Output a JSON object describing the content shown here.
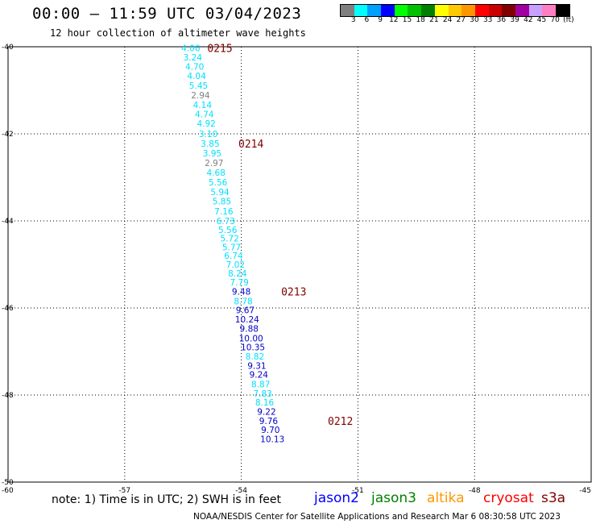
{
  "header": {
    "title": "00:00 – 11:59 UTC 03/04/2023",
    "subtitle": "12 hour collection of altimeter wave heights"
  },
  "color_legend": {
    "colors": [
      "#7f7f7f",
      "#00ffff",
      "#00a0ff",
      "#0000ff",
      "#00ff00",
      "#00c000",
      "#008000",
      "#ffff00",
      "#ffc800",
      "#ff9600",
      "#ff0000",
      "#c80000",
      "#800000",
      "#a000a0",
      "#c8a0ff",
      "#ff80c0",
      "#000000"
    ],
    "labels": [
      "3",
      "6",
      "9",
      "12",
      "15",
      "18",
      "21",
      "24",
      "27",
      "30",
      "33",
      "36",
      "39",
      "42",
      "45",
      "70",
      "(ft)"
    ]
  },
  "chart_data": {
    "type": "scatter",
    "x_ticks": [
      "-57",
      "-54",
      "-51",
      "-48",
      "-45"
    ],
    "y_ticks": [
      "-40",
      "-42",
      "-44",
      "-46",
      "-48",
      "-50"
    ],
    "corner_x_label": "-60",
    "xlim": [
      -60,
      -45
    ],
    "ylim": [
      -50,
      -40
    ],
    "grid": true,
    "points": [
      {
        "lon": -55.3,
        "lat": -40.03,
        "v": "4.06",
        "c": "#00e0ff"
      },
      {
        "lon": -55.25,
        "lat": -40.24,
        "v": "3.24",
        "c": "#00e0ff"
      },
      {
        "lon": -55.2,
        "lat": -40.45,
        "v": "4.70",
        "c": "#00e0ff"
      },
      {
        "lon": -55.15,
        "lat": -40.67,
        "v": "4.04",
        "c": "#00e0ff"
      },
      {
        "lon": -55.1,
        "lat": -40.89,
        "v": "5.45",
        "c": "#00e0ff"
      },
      {
        "lon": -55.05,
        "lat": -41.11,
        "v": "2.94",
        "c": "#7f7f7f"
      },
      {
        "lon": -55.0,
        "lat": -41.33,
        "v": "4.14",
        "c": "#00e0ff"
      },
      {
        "lon": -54.95,
        "lat": -41.55,
        "v": "4.74",
        "c": "#00e0ff"
      },
      {
        "lon": -54.9,
        "lat": -41.76,
        "v": "4.92",
        "c": "#00e0ff"
      },
      {
        "lon": -54.85,
        "lat": -42.0,
        "v": "3.10",
        "c": "#00e0ff"
      },
      {
        "lon": -54.8,
        "lat": -42.22,
        "v": "3.85",
        "c": "#00e0ff"
      },
      {
        "lon": -54.75,
        "lat": -42.44,
        "v": "3.95",
        "c": "#00e0ff"
      },
      {
        "lon": -54.7,
        "lat": -42.67,
        "v": "2.97",
        "c": "#7f7f7f"
      },
      {
        "lon": -54.65,
        "lat": -42.89,
        "v": "4.68",
        "c": "#00e0ff"
      },
      {
        "lon": -54.6,
        "lat": -43.11,
        "v": "5.56",
        "c": "#00e0ff"
      },
      {
        "lon": -54.55,
        "lat": -43.33,
        "v": "5.94",
        "c": "#00e0ff"
      },
      {
        "lon": -54.5,
        "lat": -43.55,
        "v": "5.85",
        "c": "#00e0ff"
      },
      {
        "lon": -54.45,
        "lat": -43.78,
        "v": "7.16",
        "c": "#00e0ff"
      },
      {
        "lon": -54.4,
        "lat": -44.0,
        "v": "6.73",
        "c": "#00e0ff"
      },
      {
        "lon": -54.35,
        "lat": -44.2,
        "v": "5.56",
        "c": "#00e0ff"
      },
      {
        "lon": -54.3,
        "lat": -44.4,
        "v": "5.72",
        "c": "#00e0ff"
      },
      {
        "lon": -54.25,
        "lat": -44.6,
        "v": "5.77",
        "c": "#00e0ff"
      },
      {
        "lon": -54.2,
        "lat": -44.8,
        "v": "6.74",
        "c": "#00e0ff"
      },
      {
        "lon": -54.15,
        "lat": -45.0,
        "v": "7.02",
        "c": "#00e0ff"
      },
      {
        "lon": -54.1,
        "lat": -45.2,
        "v": "8.24",
        "c": "#00e0ff"
      },
      {
        "lon": -54.05,
        "lat": -45.41,
        "v": "7.79",
        "c": "#00e0ff"
      },
      {
        "lon": -54.0,
        "lat": -45.62,
        "v": "9.48",
        "c": "#0000c8"
      },
      {
        "lon": -53.95,
        "lat": -45.84,
        "v": "8.78",
        "c": "#00e0ff"
      },
      {
        "lon": -53.9,
        "lat": -46.05,
        "v": "9.67",
        "c": "#0000c8"
      },
      {
        "lon": -53.85,
        "lat": -46.26,
        "v": "10.24",
        "c": "#0000c8"
      },
      {
        "lon": -53.8,
        "lat": -46.47,
        "v": "9.88",
        "c": "#0000c8"
      },
      {
        "lon": -53.75,
        "lat": -46.69,
        "v": "10.00",
        "c": "#0000c8"
      },
      {
        "lon": -53.7,
        "lat": -46.9,
        "v": "10.35",
        "c": "#0000c8"
      },
      {
        "lon": -53.65,
        "lat": -47.11,
        "v": "8.82",
        "c": "#00e0ff"
      },
      {
        "lon": -53.6,
        "lat": -47.32,
        "v": "9.31",
        "c": "#0000c8"
      },
      {
        "lon": -53.55,
        "lat": -47.53,
        "v": "9.24",
        "c": "#0000c8"
      },
      {
        "lon": -53.5,
        "lat": -47.75,
        "v": "8.87",
        "c": "#00e0ff"
      },
      {
        "lon": -53.45,
        "lat": -47.96,
        "v": "7.83",
        "c": "#00e0ff"
      },
      {
        "lon": -53.4,
        "lat": -48.17,
        "v": "8.16",
        "c": "#00e0ff"
      },
      {
        "lon": -53.35,
        "lat": -48.38,
        "v": "9.22",
        "c": "#0000c8"
      },
      {
        "lon": -53.3,
        "lat": -48.59,
        "v": "9.76",
        "c": "#0000c8"
      },
      {
        "lon": -53.25,
        "lat": -48.8,
        "v": "9.70",
        "c": "#0000c8"
      },
      {
        "lon": -53.2,
        "lat": -49.01,
        "v": "10.13",
        "c": "#0000c8"
      }
    ],
    "time_labels": [
      {
        "lon": -54.55,
        "lat": -40.03,
        "text": "0215"
      },
      {
        "lon": -53.75,
        "lat": -42.22,
        "text": "0214"
      },
      {
        "lon": -52.65,
        "lat": -45.62,
        "text": "0213"
      },
      {
        "lon": -51.45,
        "lat": -48.59,
        "text": "0212"
      }
    ],
    "time_label_color": "#800000"
  },
  "footer": {
    "note": "note: 1) Time is in UTC; 2) SWH is in feet",
    "satellites": [
      {
        "name": "jason2",
        "color": "#0000ff"
      },
      {
        "name": "jason3",
        "color": "#008000"
      },
      {
        "name": "altika",
        "color": "#ff9600"
      },
      {
        "name": "cryosat",
        "color": "#ff0000"
      },
      {
        "name": "s3a",
        "color": "#800000"
      }
    ],
    "credit": "NOAA/NESDIS Center for Satellite Applications and Research    Mar  6 08:30:58 UTC 2023"
  }
}
